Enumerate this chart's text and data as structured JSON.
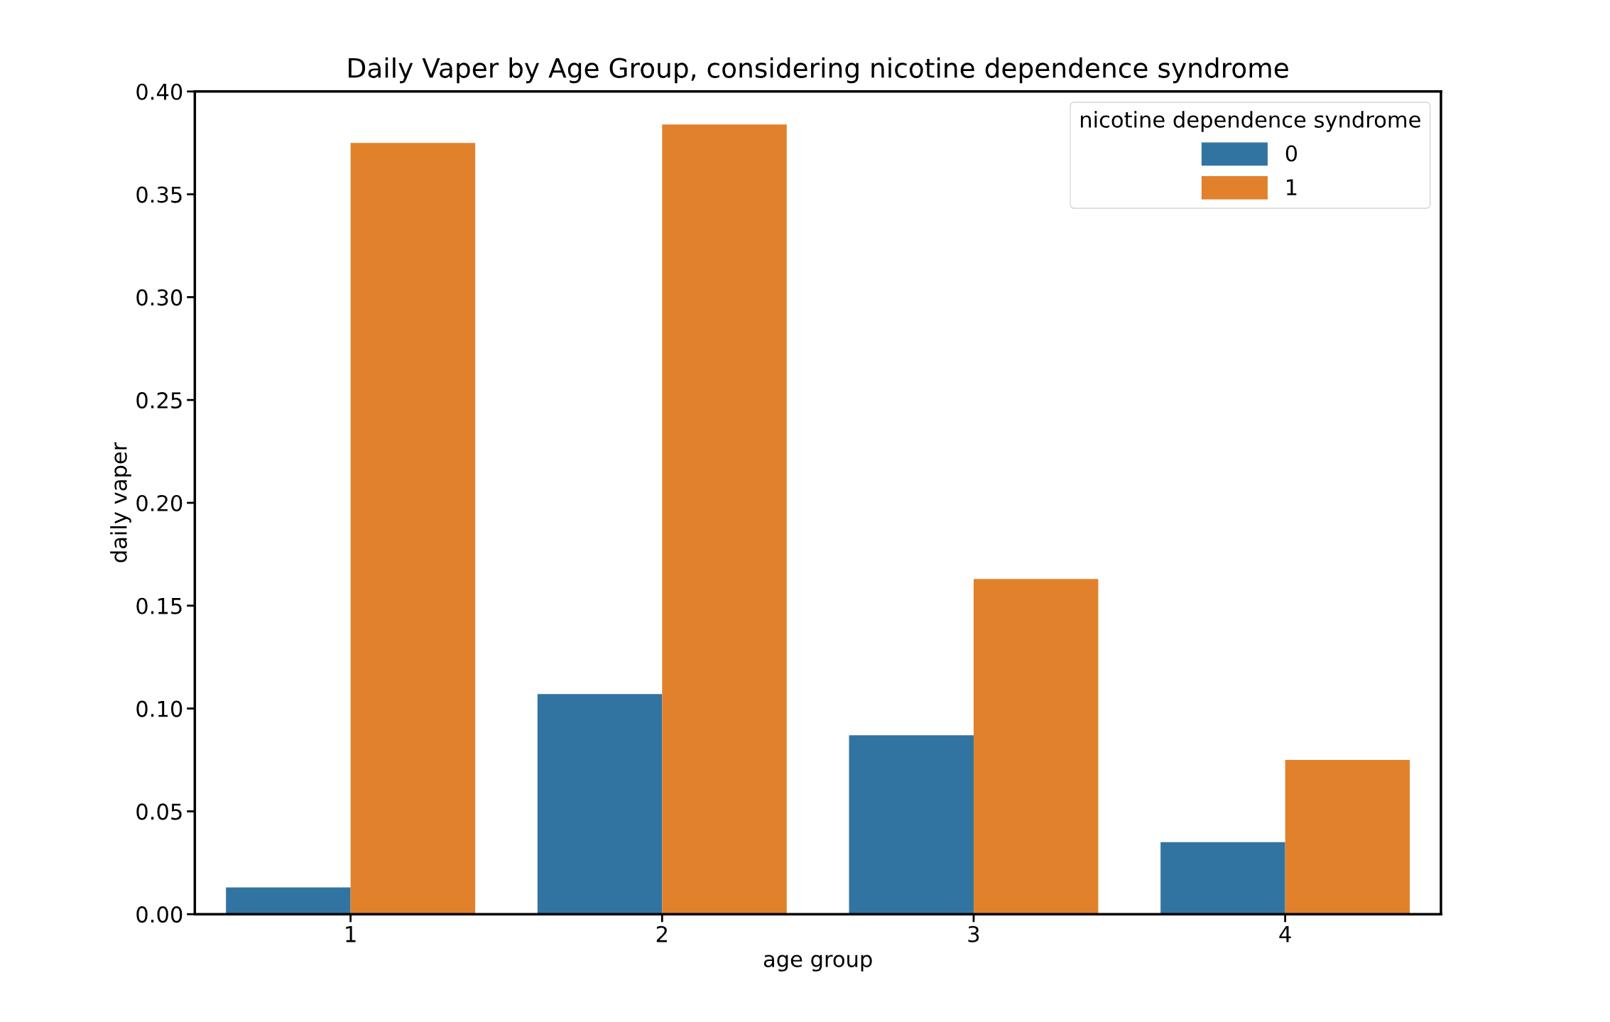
{
  "chart_data": {
    "type": "bar",
    "title": "Daily Vaper by Age Group, considering nicotine dependence syndrome",
    "xlabel": "age group",
    "ylabel": "daily vaper",
    "legend_title": "nicotine dependence syndrome",
    "categories": [
      "1",
      "2",
      "3",
      "4"
    ],
    "series": [
      {
        "name": "0",
        "color": "#3274a1",
        "values": [
          0.013,
          0.107,
          0.087,
          0.035
        ]
      },
      {
        "name": "1",
        "color": "#e1812c",
        "values": [
          0.375,
          0.384,
          0.163,
          0.075
        ]
      }
    ],
    "ylim": [
      0,
      0.4
    ],
    "yticks": [
      {
        "value": 0,
        "label": "0.00"
      },
      {
        "value": 0.05,
        "label": "0.05"
      },
      {
        "value": 0.1,
        "label": "0.10"
      },
      {
        "value": 0.15,
        "label": "0.15"
      },
      {
        "value": 0.2,
        "label": "0.20"
      },
      {
        "value": 0.25,
        "label": "0.25"
      },
      {
        "value": 0.3,
        "label": "0.30"
      },
      {
        "value": 0.35,
        "label": "0.35"
      },
      {
        "value": 0.4,
        "label": "0.40"
      }
    ],
    "legend": "top right",
    "grid": false
  }
}
